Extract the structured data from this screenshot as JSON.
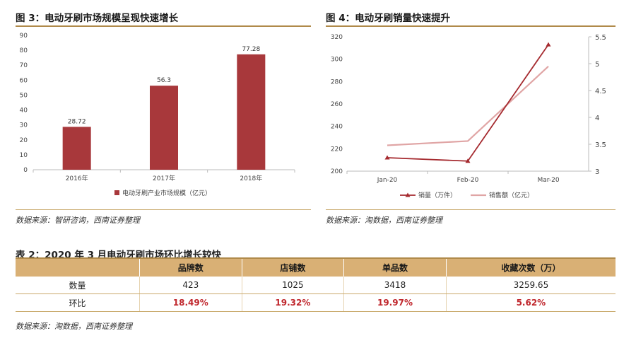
{
  "fig3": {
    "title": "图 3：电动牙刷市场规模呈现快速增长",
    "source": "数据来源：智研咨询，西南证券整理"
  },
  "fig4": {
    "title": "图 4：电动牙刷销量快速提升",
    "source": "数据来源：淘数据，西南证券整理"
  },
  "table": {
    "title": "表 2：2020 年 3 月电动牙刷市场环比增长较快",
    "headers": [
      "",
      "品牌数",
      "店铺数",
      "单品数",
      "收藏次数（万）"
    ],
    "rows": [
      {
        "label": "数量",
        "values": [
          "423",
          "1025",
          "3418",
          "3259.65"
        ]
      },
      {
        "label": "环比",
        "values": [
          "18.49%",
          "19.32%",
          "19.97%",
          "5.62%"
        ]
      }
    ],
    "source": "数据来源：淘数据，西南证券整理"
  },
  "colors": {
    "bar": "#a8383b",
    "line_volume": "#a52a2f",
    "line_sales": "#e0a5a5",
    "header_bg": "#d9b075",
    "rule": "#b08a4a",
    "highlight": "#c0272d"
  },
  "chart_data": [
    {
      "type": "bar",
      "categories": [
        "2016年",
        "2017年",
        "2018年"
      ],
      "series": [
        {
          "name": "电动牙刷产业市场规模（亿元）",
          "values": [
            28.72,
            56.3,
            77.28
          ]
        }
      ],
      "data_labels": [
        "28.72",
        "56.3",
        "77.28"
      ],
      "ylim": [
        0,
        90
      ],
      "yticks": [
        0,
        10,
        20,
        30,
        40,
        50,
        60,
        70,
        80,
        90
      ],
      "grid": false,
      "legend": "bottom"
    },
    {
      "type": "line",
      "categories": [
        "Jan-20",
        "Feb-20",
        "Mar-20"
      ],
      "series": [
        {
          "name": "销量（万件）",
          "axis": "left",
          "values": [
            212,
            209,
            313
          ]
        },
        {
          "name": "销售额（亿元）",
          "axis": "right",
          "values": [
            3.48,
            3.56,
            4.95
          ]
        }
      ],
      "ylim_left": [
        200,
        320
      ],
      "yticks_left": [
        200,
        220,
        240,
        260,
        280,
        300,
        320
      ],
      "ylim_right": [
        3,
        5.5
      ],
      "yticks_right": [
        "3",
        "3.5",
        "4",
        "4.5",
        "5",
        "5.5"
      ],
      "grid": false,
      "legend": "bottom"
    }
  ]
}
